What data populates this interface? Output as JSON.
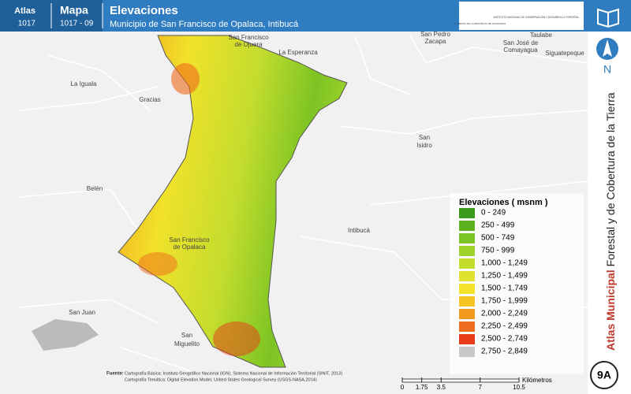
{
  "header": {
    "atlas_label": "Atlas",
    "atlas_number": "1017",
    "map_label": "Mapa",
    "map_number": "1017 - 09",
    "title": "Elevaciones",
    "subtitle": "Municipio de San Francisco de Opalaca, Intibucá",
    "logo_left": "GOBIERNO DE LA REPÚBLICA DE HONDURAS",
    "logo_right": "INSTITUTO NACIONAL DE CONSERVACIÓN Y DESARROLLO FORESTAL"
  },
  "places": [
    "San Francisco",
    "de Ojuera",
    "La Esperanza",
    "San Pedro",
    "Zacapa",
    "San José de",
    "Comayagua",
    "Taulabe",
    "Siguatepeque",
    "La Iguala",
    "Gracias",
    "San",
    "Isidro",
    "Belén",
    "Intibucá",
    "San Francisco",
    "de Opalaca",
    "San Juan",
    "San",
    "Miguelito"
  ],
  "legend": {
    "title": "Elevaciones ( msnm )",
    "items": [
      {
        "label": "0 - 249",
        "color": "#3a9a1a"
      },
      {
        "label": "250 - 499",
        "color": "#5cb21e"
      },
      {
        "label": "500 - 749",
        "color": "#7cc423"
      },
      {
        "label": "750 - 999",
        "color": "#9ed12a"
      },
      {
        "label": "1,000 - 1,249",
        "color": "#c3dc2e"
      },
      {
        "label": "1,250 - 1,499",
        "color": "#e1e22f"
      },
      {
        "label": "1,500 - 1,749",
        "color": "#f2e22a"
      },
      {
        "label": "1,750 - 1,999",
        "color": "#f6c524"
      },
      {
        "label": "2,000 - 2,249",
        "color": "#f29a1f"
      },
      {
        "label": "2,250 - 2,499",
        "color": "#ee6a1c"
      },
      {
        "label": "2,500 - 2,749",
        "color": "#e83a18"
      },
      {
        "label": "2,750 - 2,849",
        "color": "#c8c8c8"
      }
    ]
  },
  "sidebar": {
    "north": "N",
    "title_bold": "Atlas Municipal",
    "title_rest": " Forestal y de Cobertura de la Tierra",
    "badge": "9A"
  },
  "scale": {
    "ticks": [
      0,
      1.75,
      3.5,
      7,
      10.5
    ],
    "unit": "Kilómetros"
  },
  "source": {
    "label": "Fuente:",
    "line1": "Cartografía Básica: Instituto Geográfico Nacional (IGN), Sistema Nacional de Información Territorial (SINIT, 2013)",
    "line2": "Cartografía Temática: Digital Elevation Model, United States Geological Survey (USGS-NASA,2014)"
  }
}
